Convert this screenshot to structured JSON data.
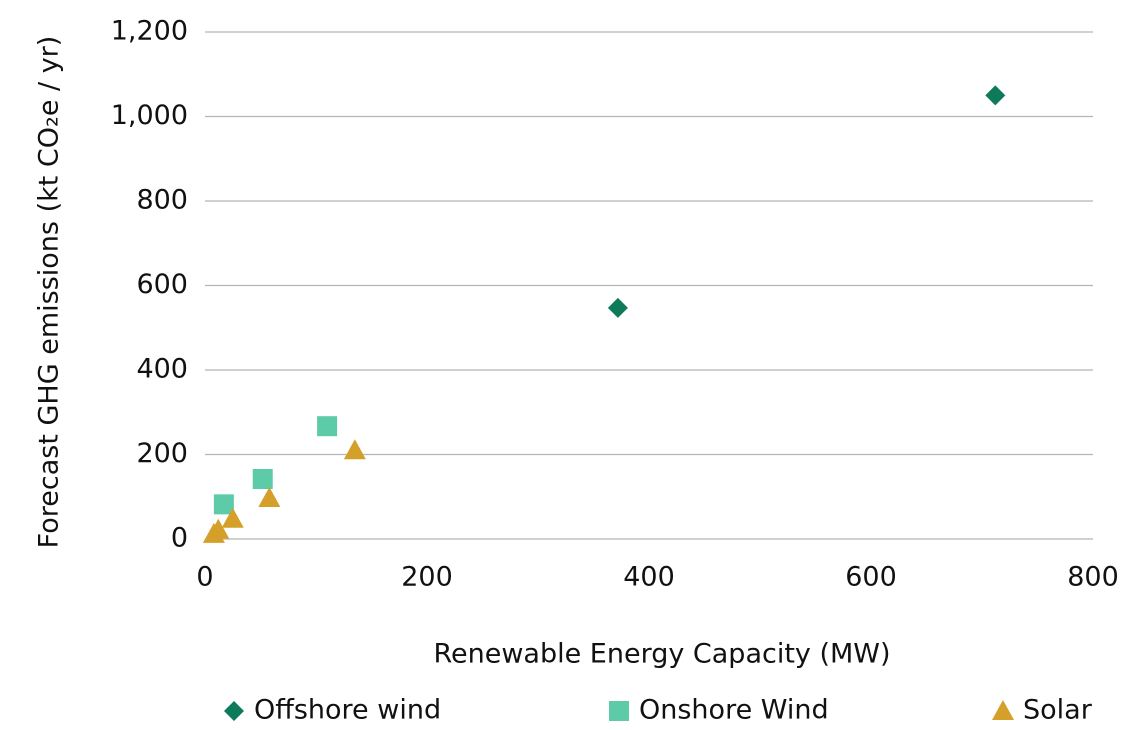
{
  "chart_data": {
    "type": "scatter",
    "xlabel": "Renewable Energy Capacity (MW)",
    "ylabel": "Forecast GHG emissions (kt CO₂e / yr)",
    "series": [
      {
        "name": "Offshore wind",
        "color": "#0e7a5a",
        "marker": "diamond",
        "x": [
          372,
          712
        ],
        "values": [
          547,
          1050
        ]
      },
      {
        "name": "Onshore Wind",
        "color": "#5ecba8",
        "marker": "square",
        "x": [
          17,
          52,
          110
        ],
        "values": [
          82,
          142,
          267
        ]
      },
      {
        "name": "Solar",
        "color": "#d4a02a",
        "marker": "triangle",
        "x": [
          8,
          12,
          25,
          58,
          135
        ],
        "values": [
          12,
          22,
          48,
          97,
          210
        ]
      }
    ],
    "xlim": [
      0,
      800
    ],
    "xticks": [
      0,
      200,
      400,
      600,
      800
    ],
    "ylim": [
      0,
      1200
    ],
    "yticks": [
      0,
      200,
      400,
      600,
      800,
      {
        "value": 1000,
        "label": "1,000"
      },
      {
        "value": 1200,
        "label": "1,200"
      }
    ],
    "grid": true,
    "legend": "bottom"
  }
}
